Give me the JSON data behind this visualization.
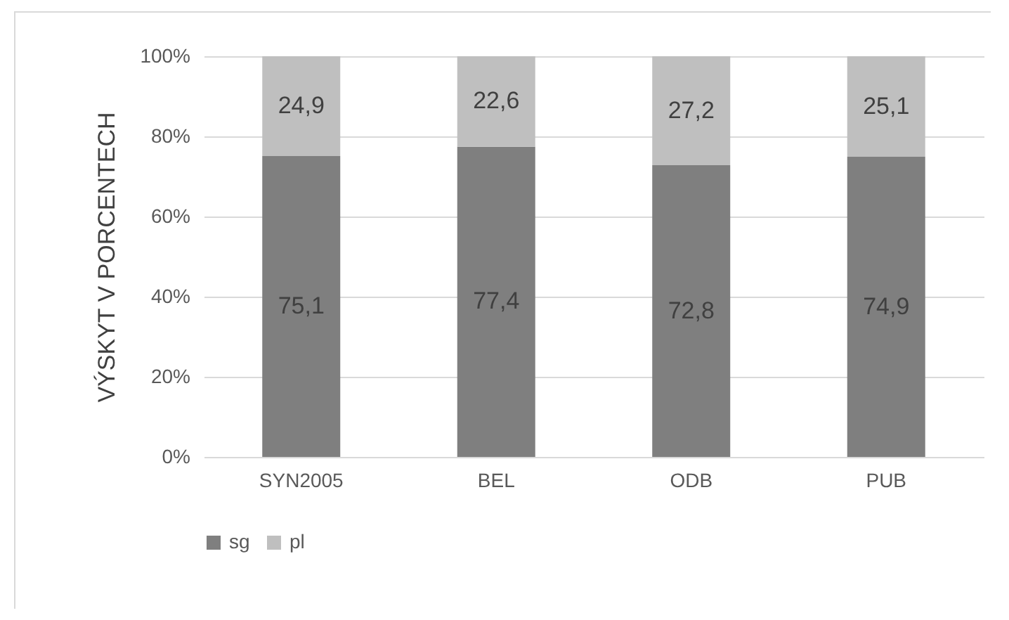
{
  "chart_data": {
    "type": "bar",
    "stacked": true,
    "ylabel": "VÝSKYT V PORCENTECH",
    "categories": [
      "SYN2005",
      "BEL",
      "ODB",
      "PUB"
    ],
    "series": [
      {
        "name": "sg",
        "color": "#7f7f7f",
        "values": [
          75.1,
          77.4,
          72.8,
          74.9
        ],
        "value_labels": [
          "75,1",
          "77,4",
          "72,8",
          "74,9"
        ]
      },
      {
        "name": "pl",
        "color": "#bfbfbf",
        "values": [
          24.9,
          22.6,
          27.2,
          25.1
        ],
        "value_labels": [
          "24,9",
          "22,6",
          "27,2",
          "25,1"
        ]
      }
    ],
    "ylim": [
      0,
      100
    ],
    "yticks": [
      {
        "value": 0,
        "label": "0%"
      },
      {
        "value": 20,
        "label": "20%"
      },
      {
        "value": 40,
        "label": "40%"
      },
      {
        "value": 60,
        "label": "60%"
      },
      {
        "value": 80,
        "label": "80%"
      },
      {
        "value": 100,
        "label": "100%"
      }
    ],
    "grid": "y",
    "legend": "bottom"
  }
}
